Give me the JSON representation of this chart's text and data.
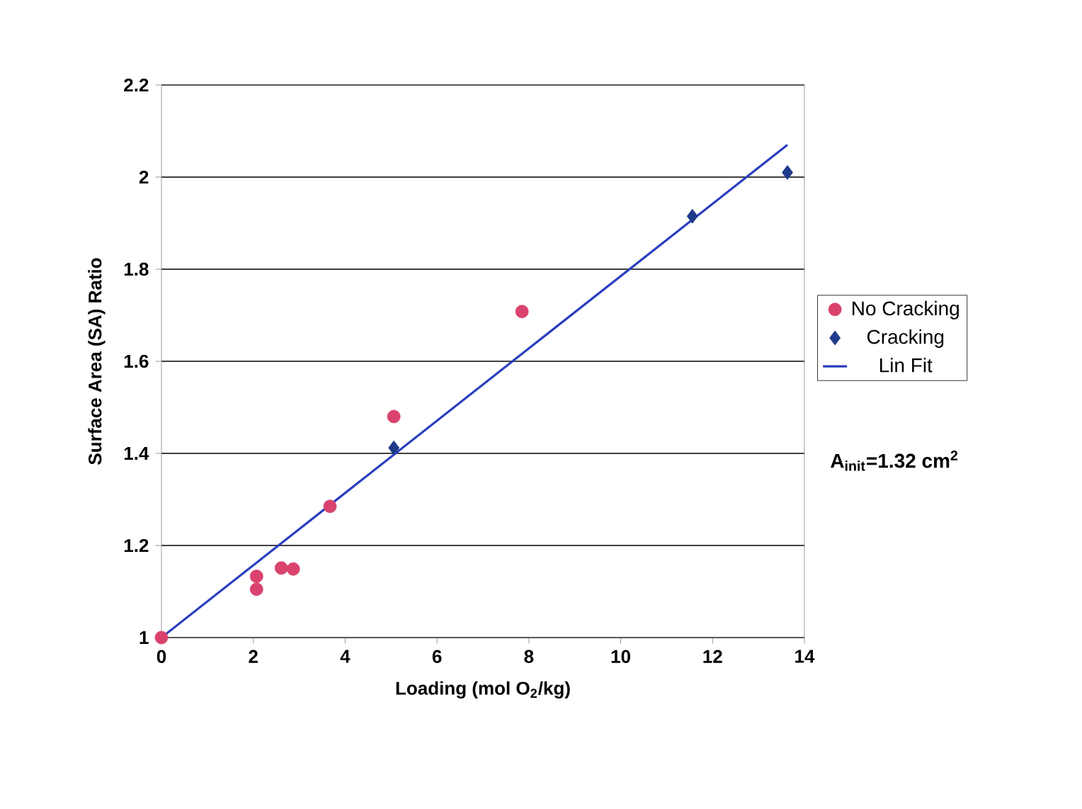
{
  "chart_data": {
    "type": "scatter",
    "xlabel": "Loading (mol O$_{2}$/kg)",
    "ylabel": "Surface Area (SA) Ratio",
    "series": [
      {
        "name": "No Cracking",
        "color": "#d9436e",
        "marker": "circle",
        "x": [
          0,
          2.07,
          2.07,
          2.61,
          2.87,
          3.67,
          5.06,
          7.85
        ],
        "values": [
          1,
          1.133,
          1.105,
          1.151,
          1.149,
          1.285,
          1.48,
          1.708
        ]
      },
      {
        "name": "Cracking",
        "color": "#1f3a8a",
        "marker": "diamond",
        "x": [
          5.06,
          11.56,
          13.63
        ],
        "values": [
          1.412,
          1.915,
          2.01
        ]
      },
      {
        "name": "Lin Fit",
        "type": "line",
        "color": "#2a3fbf",
        "marker": "none",
        "x": [
          0,
          13.63
        ],
        "values": [
          1,
          2.07
        ]
      }
    ],
    "xlim": [
      0,
      14
    ],
    "xticks": [
      0,
      2,
      4,
      6,
      8,
      10,
      12,
      14
    ],
    "ylim": [
      1,
      2.2
    ],
    "yticks": [
      1,
      1.2,
      1.4,
      1.6,
      1.8,
      2,
      2.2
    ],
    "grid": "y",
    "legend": "right",
    "annotations": [
      "A$_{init}$=1.32 cm$^{2}$"
    ]
  }
}
